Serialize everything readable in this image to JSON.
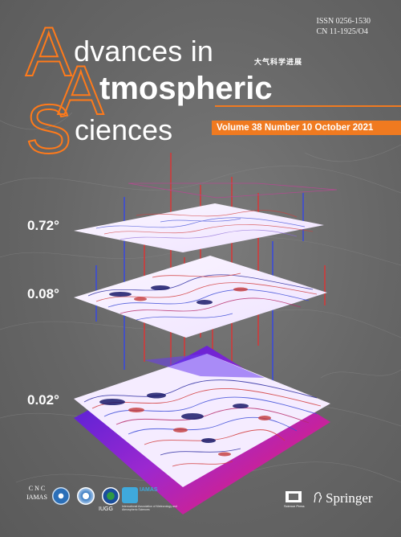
{
  "issn": {
    "line1": "ISSN 0256-1530",
    "line2": "CN 11-1925/O4"
  },
  "logo_letters": {
    "a1": "A",
    "a2": "A",
    "s": "S"
  },
  "title": {
    "word1": "dvances in",
    "word2": "tmospheric",
    "word3": "ciences",
    "chinese": "大气科学进展"
  },
  "issue": "Volume 38 Number 10  October 2021",
  "layers": {
    "top": "0.72°",
    "middle": "0.08°",
    "bottom": "0.02°"
  },
  "publishers": {
    "cnc": "C N C",
    "iamas": "IAMAS",
    "iugg": "IUGG",
    "iamas_logo": "IAMAS",
    "iamas_full": "International Association of Meteorology and Atmospheric Sciences",
    "science_press": "Science Press",
    "springer": "Springer"
  },
  "colors": {
    "accent": "#f07a20",
    "background": "#6a6a6a"
  }
}
